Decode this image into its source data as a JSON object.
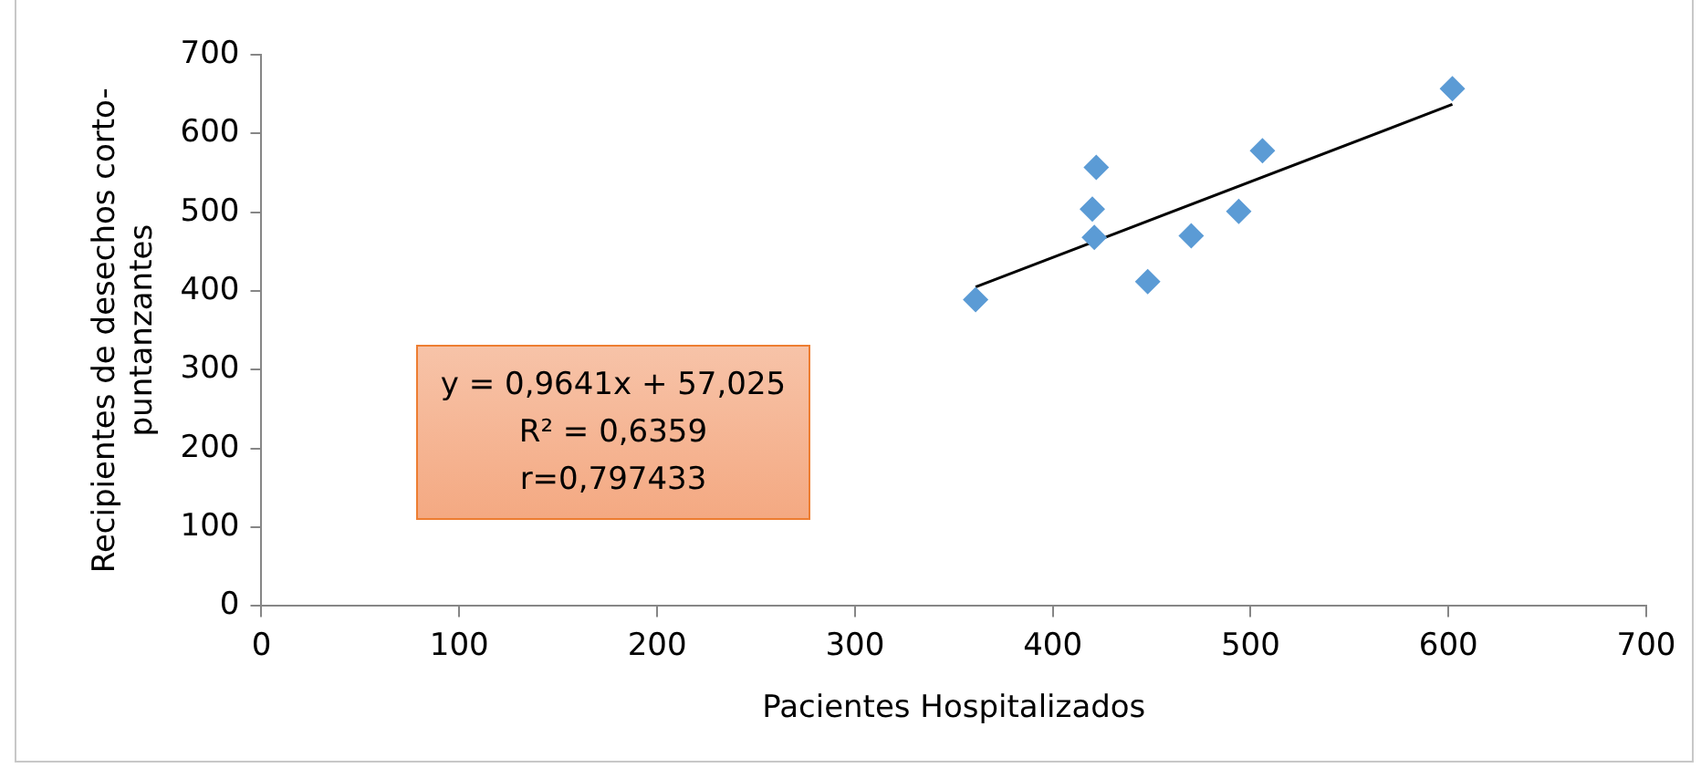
{
  "chart_data": {
    "type": "scatter",
    "xlabel": "Pacientes Hospitalizados",
    "ylabel": "Recipientes de desechos corto-puntanzantes",
    "xlim": [
      0,
      700
    ],
    "xticks": [
      0,
      100,
      200,
      300,
      400,
      500,
      600,
      700
    ],
    "ylim": [
      0,
      700
    ],
    "yticks": [
      0,
      100,
      200,
      300,
      400,
      500,
      600,
      700
    ],
    "grid": false,
    "legend": false,
    "marker": "diamond",
    "series": [
      {
        "color": "#5b9bd5",
        "x": [
          361,
          420,
          421,
          422,
          448,
          470,
          494,
          506,
          602
        ],
        "values": [
          389,
          504,
          468,
          557,
          412,
          470,
          501,
          578,
          657
        ]
      },
      {
        "type": "line",
        "color": "#000000",
        "marker": "none",
        "x": [
          361,
          602
        ],
        "values": [
          405,
          637
        ]
      }
    ],
    "annotations": [
      "y = 0,9641x + 57,025",
      "R² = 0,6359",
      "r=0,797433"
    ]
  }
}
